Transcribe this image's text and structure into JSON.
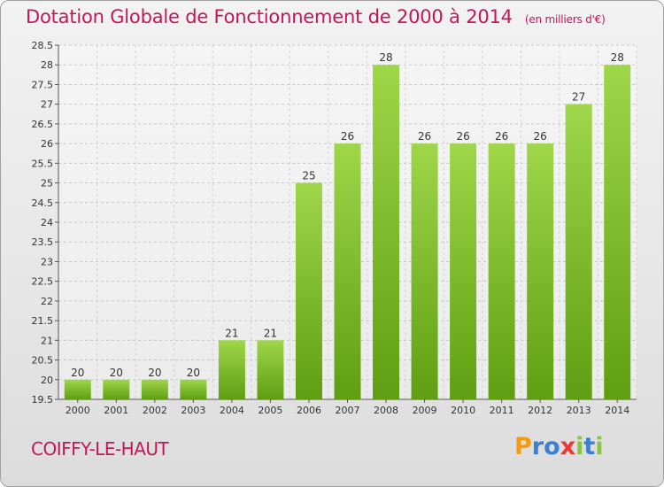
{
  "header": {
    "title": "Dotation Globale de Fonctionnement de 2000 à 2014",
    "unit": "(en milliers d'€)"
  },
  "footer": {
    "commune": "COIFFY-LE-HAUT",
    "logo_letters": [
      "P",
      "r",
      "o",
      "x",
      "i",
      "t",
      "i"
    ],
    "logo_colors": [
      "#f39c12",
      "#3b7fd1",
      "#3b7fd1",
      "#e53935",
      "#8bc34a",
      "#3b7fd1",
      "#8bc34a"
    ]
  },
  "chart_data": {
    "type": "bar",
    "title": "Dotation Globale de Fonctionnement de 2000 à 2014",
    "subtitle": "(en milliers d'€)",
    "xlabel": "",
    "ylabel": "",
    "categories": [
      "2000",
      "2001",
      "2002",
      "2003",
      "2004",
      "2005",
      "2006",
      "2007",
      "2008",
      "2009",
      "2010",
      "2011",
      "2012",
      "2013",
      "2014"
    ],
    "values": [
      20,
      20,
      20,
      20,
      21,
      21,
      25,
      26,
      28,
      26,
      26,
      26,
      26,
      27,
      28
    ],
    "data_labels": [
      "20",
      "20",
      "20",
      "20",
      "21",
      "21",
      "25",
      "26",
      "28",
      "26",
      "26",
      "26",
      "26",
      "27",
      "28"
    ],
    "ylim": [
      19.5,
      28.5
    ],
    "yticks": [
      "19.5",
      "20",
      "20.5",
      "21",
      "21.5",
      "22",
      "22.5",
      "23",
      "23.5",
      "24",
      "24.5",
      "25",
      "25.5",
      "26",
      "26.5",
      "27",
      "27.5",
      "28",
      "28.5"
    ],
    "grid": true,
    "bar_color": "#7cc11e"
  }
}
